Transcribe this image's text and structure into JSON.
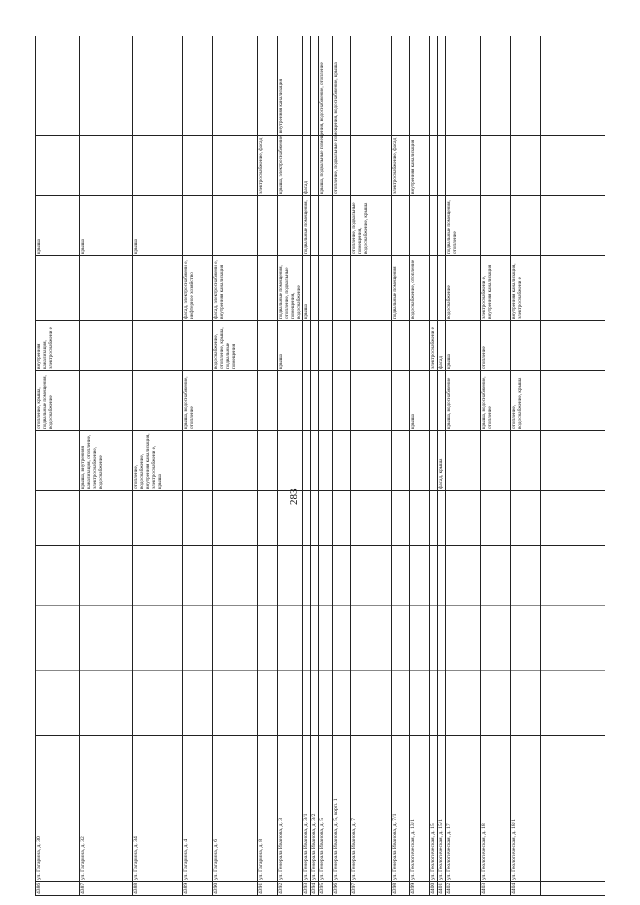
{
  "page_number": "283",
  "rows": [
    {
      "id": "4386",
      "addr": "ул. Гагарина, д. 30",
      "c7": "",
      "c8": "отопление, крыша, подвальные помещения, водоснабжение",
      "c9": "внутренняя канализация, электроснабжени е",
      "c10": "",
      "c11": "крыша",
      "c12": ""
    },
    {
      "id": "4387",
      "addr": "ул. Гагарина, д. 32",
      "c7": "крыша, внутренняя канализация, отопление, электроснабжение, водоснабжение",
      "c8": "",
      "c9": "",
      "c10": "",
      "c11": "крыша",
      "c12": ""
    },
    {
      "id": "4388",
      "addr": "ул. Гагарина, д. 34",
      "c7": "отопление, водоснабжение, внутренняя канализация, электроснабжени е, крыша",
      "c8": "",
      "c9": "",
      "c10": "",
      "c11": "крыша",
      "c12": ""
    },
    {
      "id": "4389",
      "addr": "ул. Гагарина, д. 4",
      "c7": "",
      "c8": "крыша, водоснабжение, отопление",
      "c9": "",
      "c10": "фасад, электроснабжени е, инфтерное хозяйство",
      "c11": "",
      "c12": ""
    },
    {
      "id": "4390",
      "addr": "ул. Гагарина, д. 6",
      "c7": "",
      "c8": "",
      "c9": "водоснабжение, отопление, крыша, подвальные помещения",
      "c10": "фасад, электроснабжени е, внутренняя канализация",
      "c11": "",
      "c12": ""
    },
    {
      "id": "4391",
      "addr": "ул. Гагарина, д. 8",
      "c7": "",
      "c8": "",
      "c9": "",
      "c10": "",
      "c11": "",
      "c12": "электроснабжение, фасад"
    },
    {
      "id": "4392",
      "addr": "ул. Генерала Иванова, д. 3",
      "c7": "",
      "c8": "",
      "c9": "крыша",
      "c10": "подвальные помещения, отопление, подвальные помещения, водоснабжение",
      "c11": "",
      "c12": "крыша, электроснабжение, внутренняя канализация"
    },
    {
      "id": "4393",
      "addr": "ул. Генерала Иванова, д. 3/1",
      "c7": "",
      "c8": "",
      "c9": "",
      "c10": "крыша",
      "c11": "подвальные помещения, отопление, водоснабжение",
      "c12": "фасад"
    },
    {
      "id": "4394",
      "addr": "ул. Генерала Иванова, д. 3/2",
      "c7": "",
      "c8": "",
      "c9": "",
      "c10": "",
      "c11": "",
      "c12": ""
    },
    {
      "id": "4395",
      "addr": "ул. Генерала Иванова, д. 5",
      "c7": "",
      "c8": "",
      "c9": "",
      "c10": "",
      "c11": "",
      "c12": "крыша, подвальные помещения, водоснабжение, отопление"
    },
    {
      "id": "4396",
      "addr": "ул. Генерала Иванова, д. 5, корп. 1",
      "c7": "",
      "c8": "",
      "c9": "",
      "c10": "",
      "c11": "",
      "c12": "отопление, подвальные помещения, водоснабжение, крыша"
    },
    {
      "id": "4397",
      "addr": "ул. Генерала Иванова, д. 7",
      "c7": "",
      "c8": "",
      "c9": "",
      "c10": "",
      "c11": "отопление, подвальные помещения, водоснабжение, крыша",
      "c12": ""
    },
    {
      "id": "4398",
      "addr": "ул. Генерала Иванова, д. 7/1",
      "c7": "",
      "c8": "",
      "c9": "",
      "c10": "подвальные помещения",
      "c11": "",
      "c12": "электроснабжение, фасад"
    },
    {
      "id": "4399",
      "addr": "ул. Геологическая, д. 13/1",
      "c7": "",
      "c8": "крыша",
      "c9": "",
      "c10": "водоснабжение, отопление",
      "c11": "",
      "c12": "внутренняя канализация"
    },
    {
      "id": "4400",
      "addr": "ул. Геологическая, д. 15",
      "c7": "",
      "c8": "",
      "c9": "электроснабжени е",
      "c10": "",
      "c11": "",
      "c12": ""
    },
    {
      "id": "4401",
      "addr": "ул. Геологическая, д. 15/1",
      "c7": "фасад, крыша",
      "c8": "",
      "c9": "фасад",
      "c10": "",
      "c11": "",
      "c12": ""
    },
    {
      "id": "4402",
      "addr": "ул. Геологическая, д. 17",
      "c7": "",
      "c8": "крыша, водоснабжение",
      "c9": "крыша",
      "c10": "водоснабжение",
      "c11": "подвальные помещения, отопление",
      "c12": ""
    },
    {
      "id": "4403",
      "addr": "ул. Геологическая, д. 18",
      "c7": "",
      "c8": "крыша, водоснабжение, отопление",
      "c9": "отопление",
      "c10": "электроснабжени е, внутренняя канализация",
      "c11": "",
      "c12": ""
    },
    {
      "id": "4404",
      "addr": "ул. Геологическая, д. 18/1",
      "c7": "",
      "c8": "отопление, водоснабжение, крыша",
      "c9": "",
      "c10": "внутренняя канализация, электроснабжени е",
      "c11": "",
      "c12": ""
    }
  ]
}
